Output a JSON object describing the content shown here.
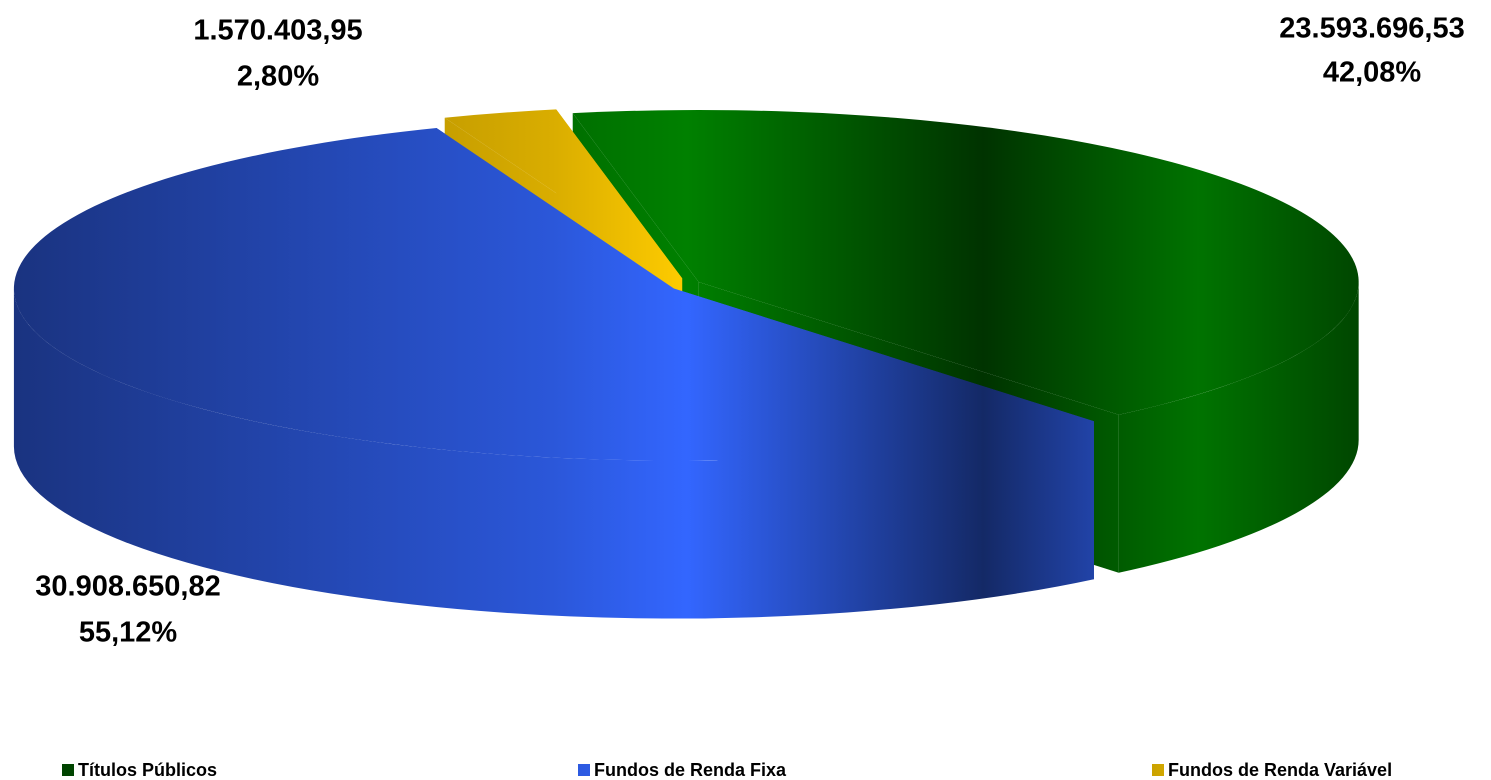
{
  "chart_data": {
    "type": "pie3d",
    "categories": [
      "Títulos Públicos",
      "Fundos de Renda Fixa",
      "Fundos de Renda Variável"
    ],
    "values": [
      23593696.53,
      30908650.82,
      1570403.95
    ],
    "value_labels": [
      "23.593.696,53",
      "30.908.650,82",
      "1.570.403,95"
    ],
    "percent_labels": [
      "42,08%",
      "55,12%",
      "2,80%"
    ],
    "colors": [
      "#008000",
      "#3366ff",
      "#ffcc00"
    ],
    "legend": "bottom"
  }
}
